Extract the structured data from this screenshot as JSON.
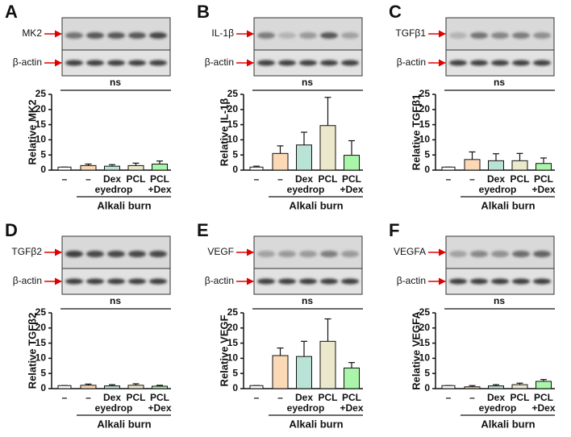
{
  "chart_data": [
    {
      "type": "bar",
      "panel": "A",
      "blot_labels": [
        "MK2",
        "β-actin"
      ],
      "annotation": "ns",
      "ylabel": "Relative MK2",
      "categories": [
        [
          "–"
        ],
        [
          "–"
        ],
        [
          "Dex",
          "eyedrop"
        ],
        [
          "PCL"
        ],
        [
          "PCL",
          "+Dex"
        ]
      ],
      "group_label": "Alkali burn",
      "values": [
        1,
        1.5,
        1.3,
        1.5,
        2
      ],
      "errors": [
        0,
        0.5,
        0.5,
        0.8,
        1.0
      ],
      "colors": [
        "#ffffff",
        "#fcd9b6",
        "#b9e3d6",
        "#ece8cc",
        "#a9f5a9"
      ],
      "ylim": [
        0,
        25
      ],
      "yticks": [
        0,
        5,
        10,
        15,
        20,
        25
      ]
    },
    {
      "type": "bar",
      "panel": "B",
      "blot_labels": [
        "IL-1β",
        "β-actin"
      ],
      "annotation": "ns",
      "ylabel": "Relative IL-1β",
      "categories": [
        [
          "–"
        ],
        [
          "–"
        ],
        [
          "Dex",
          "eyedrop"
        ],
        [
          "PCL"
        ],
        [
          "PCL",
          "+Dex"
        ]
      ],
      "group_label": "Alkali burn",
      "values": [
        1,
        5.5,
        8.3,
        14.7,
        4.9
      ],
      "errors": [
        0.3,
        2.5,
        4.2,
        9.3,
        4.8
      ],
      "colors": [
        "#ffffff",
        "#fcd9b6",
        "#b9e3d6",
        "#ece8cc",
        "#a9f5a9"
      ],
      "ylim": [
        0,
        25
      ],
      "yticks": [
        0,
        5,
        10,
        15,
        20,
        25
      ]
    },
    {
      "type": "bar",
      "panel": "C",
      "blot_labels": [
        "TGFβ1",
        "β-actin"
      ],
      "annotation": "ns",
      "ylabel": "Relative TGFβ1",
      "categories": [
        [
          "–"
        ],
        [
          "–"
        ],
        [
          "Dex",
          "eyedrop"
        ],
        [
          "PCL"
        ],
        [
          "PCL",
          "+Dex"
        ]
      ],
      "group_label": "Alkali burn",
      "values": [
        1,
        3.5,
        3.1,
        3.1,
        2.2
      ],
      "errors": [
        0,
        2.5,
        2.3,
        2.4,
        1.8
      ],
      "colors": [
        "#ffffff",
        "#fcd9b6",
        "#b9e3d6",
        "#ece8cc",
        "#a9f5a9"
      ],
      "ylim": [
        0,
        25
      ],
      "yticks": [
        0,
        5,
        10,
        15,
        20,
        25
      ]
    },
    {
      "type": "bar",
      "panel": "D",
      "blot_labels": [
        "TGFβ2",
        "β-actin"
      ],
      "annotation": "ns",
      "ylabel": "Relative TGFβ2",
      "categories": [
        [
          "–"
        ],
        [
          "–"
        ],
        [
          "Dex",
          "eyedrop"
        ],
        [
          "PCL"
        ],
        [
          "PCL",
          "+Dex"
        ]
      ],
      "group_label": "Alkali burn",
      "values": [
        1,
        1.1,
        0.9,
        1.1,
        0.8
      ],
      "errors": [
        0,
        0.4,
        0.4,
        0.5,
        0.3
      ],
      "colors": [
        "#ffffff",
        "#fcd9b6",
        "#b9e3d6",
        "#ece8cc",
        "#a9f5a9"
      ],
      "ylim": [
        0,
        25
      ],
      "yticks": [
        0,
        5,
        10,
        15,
        20,
        25
      ]
    },
    {
      "type": "bar",
      "panel": "E",
      "blot_labels": [
        "VEGF",
        "β-actin"
      ],
      "annotation": "ns",
      "ylabel": "Relative VEGF",
      "categories": [
        [
          "–"
        ],
        [
          "–"
        ],
        [
          "Dex",
          "eyedrop"
        ],
        [
          "PCL"
        ],
        [
          "PCL",
          "+Dex"
        ]
      ],
      "group_label": "Alkali burn",
      "values": [
        1,
        10.9,
        10.6,
        15.6,
        6.8
      ],
      "errors": [
        0,
        2.5,
        5.0,
        7.4,
        1.8
      ],
      "colors": [
        "#ffffff",
        "#fcd9b6",
        "#b9e3d6",
        "#ece8cc",
        "#a9f5a9"
      ],
      "ylim": [
        0,
        25
      ],
      "yticks": [
        0,
        5,
        10,
        15,
        20,
        25
      ]
    },
    {
      "type": "bar",
      "panel": "F",
      "blot_labels": [
        "VEGFA",
        "β-actin"
      ],
      "annotation": "ns",
      "ylabel": "Relative VEGFA",
      "categories": [
        [
          "–"
        ],
        [
          "–"
        ],
        [
          "Dex",
          "eyedrop"
        ],
        [
          "PCL"
        ],
        [
          "PCL",
          "+Dex"
        ]
      ],
      "group_label": "Alkali burn",
      "values": [
        1,
        0.6,
        0.9,
        1.3,
        2.4
      ],
      "errors": [
        0,
        0.4,
        0.4,
        0.5,
        0.6
      ],
      "colors": [
        "#ffffff",
        "#fcd9b6",
        "#b9e3d6",
        "#ece8cc",
        "#a9f5a9"
      ],
      "ylim": [
        0,
        25
      ],
      "yticks": [
        0,
        5,
        10,
        15,
        20,
        25
      ]
    }
  ]
}
